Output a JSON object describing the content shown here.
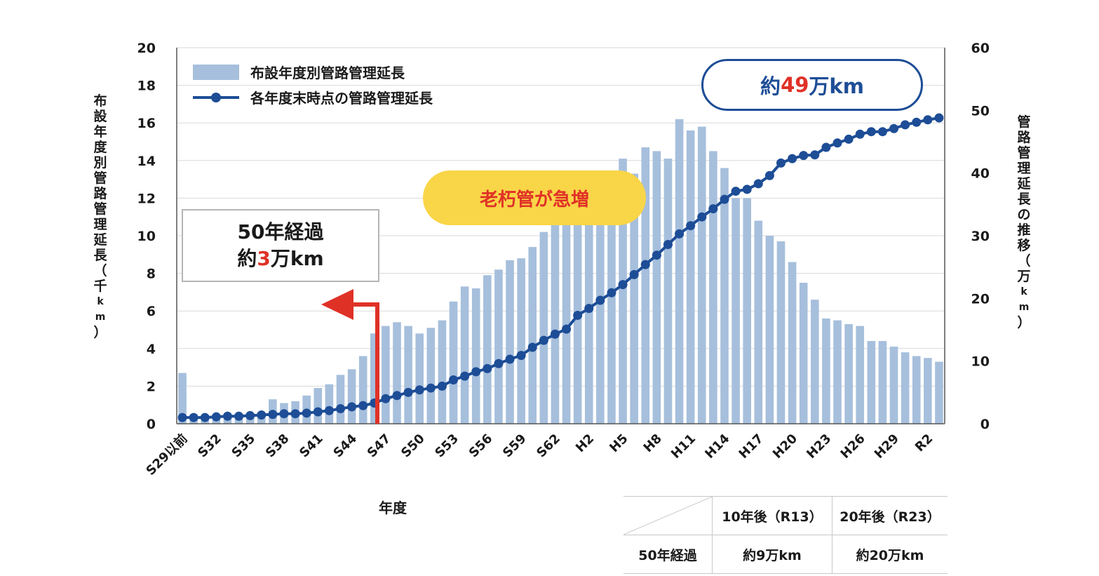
{
  "chart_data": {
    "type": "bar+line",
    "xlabel": "年度",
    "ylabel_left": "布設年度別管路管理延長（千km）",
    "ylabel_right": "管路管理延長の推移（万km）",
    "ylim_left": [
      0,
      20
    ],
    "ylim_right": [
      0,
      60
    ],
    "yticks_left": [
      0,
      2,
      4,
      6,
      8,
      10,
      12,
      14,
      16,
      18,
      20
    ],
    "yticks_right": [
      0,
      10,
      20,
      30,
      40,
      50,
      60
    ],
    "grid": true,
    "legend_placement": "top-left",
    "categories": [
      "S29以前",
      "S30",
      "S31",
      "S32",
      "S33",
      "S34",
      "S35",
      "S36",
      "S37",
      "S38",
      "S39",
      "S40",
      "S41",
      "S42",
      "S43",
      "S44",
      "S45",
      "S46",
      "S47",
      "S48",
      "S49",
      "S50",
      "S51",
      "S52",
      "S53",
      "S54",
      "S55",
      "S56",
      "S57",
      "S58",
      "S59",
      "S60",
      "S61",
      "S62",
      "S63",
      "H1",
      "H2",
      "H3",
      "H4",
      "H5",
      "H6",
      "H7",
      "H8",
      "H9",
      "H10",
      "H11",
      "H12",
      "H13",
      "H14",
      "H15",
      "H16",
      "H17",
      "H18",
      "H19",
      "H20",
      "H21",
      "H22",
      "H23",
      "H24",
      "H25",
      "H26",
      "H27",
      "H28",
      "H29",
      "H30",
      "R1",
      "R2",
      "R3"
    ],
    "x_tick_labels": [
      "S29以前",
      "S32",
      "S35",
      "S38",
      "S41",
      "S44",
      "S47",
      "S50",
      "S53",
      "S56",
      "S59",
      "S62",
      "H2",
      "H5",
      "H8",
      "H11",
      "H14",
      "H17",
      "H20",
      "H23",
      "H26",
      "H29",
      "R2"
    ],
    "series": [
      {
        "name": "布設年度別管路管理延長",
        "axis": "left",
        "type": "bar",
        "color": "#a6bfdc",
        "values": [
          2.7,
          0.5,
          0.4,
          0.5,
          0.5,
          0.5,
          0.5,
          0.6,
          1.3,
          1.1,
          1.2,
          1.5,
          1.9,
          2.1,
          2.6,
          2.9,
          3.6,
          4.8,
          5.2,
          5.4,
          5.2,
          4.8,
          5.1,
          5.5,
          6.5,
          7.3,
          7.2,
          7.9,
          8.2,
          8.7,
          8.8,
          9.4,
          10.2,
          10.7,
          10.8,
          11.3,
          11.5,
          11.5,
          12.2,
          14.1,
          13.3,
          14.7,
          14.5,
          14.1,
          16.2,
          15.6,
          15.8,
          14.5,
          13.6,
          12.0,
          12.0,
          10.8,
          10.0,
          9.7,
          8.6,
          7.5,
          6.6,
          5.6,
          5.5,
          5.3,
          5.2,
          4.4,
          4.4,
          4.1,
          3.8,
          3.6,
          3.5,
          3.3
        ]
      },
      {
        "name": "各年度末時点の管路管理延長",
        "axis": "right",
        "type": "line",
        "color": "#1d4d96",
        "values": [
          1.0,
          1.0,
          1.0,
          1.1,
          1.2,
          1.2,
          1.3,
          1.4,
          1.5,
          1.6,
          1.6,
          1.7,
          1.9,
          2.1,
          2.4,
          2.7,
          2.9,
          3.3,
          4.0,
          4.5,
          5.0,
          5.4,
          5.7,
          6.0,
          7.0,
          7.6,
          8.3,
          8.8,
          9.6,
          10.3,
          10.9,
          12.2,
          13.3,
          14.3,
          15.1,
          17.3,
          18.4,
          19.7,
          20.9,
          22.2,
          23.8,
          25.4,
          26.9,
          28.6,
          30.3,
          31.6,
          33.0,
          34.3,
          35.8,
          37.1,
          37.4,
          38.3,
          39.6,
          41.6,
          42.3,
          42.8,
          42.9,
          44.1,
          44.8,
          45.4,
          46.2,
          46.6,
          46.6,
          47.1,
          47.7,
          48.1,
          48.5,
          48.8
        ]
      }
    ],
    "annotations": {
      "total_prefix": "約",
      "total_value": "49",
      "total_suffix": "万km",
      "surge_label": "老朽管が急増",
      "over50_line1": "50年経過",
      "over50_line2_prefix": "約",
      "over50_line2_value": "3",
      "over50_line2_suffix": "万km"
    },
    "future_table": {
      "headers": [
        "10年後（R13）",
        "20年後（R23）"
      ],
      "row_label": "50年経過",
      "values": [
        "約9万km",
        "約20万km"
      ]
    },
    "colors": {
      "bar": "#a6bfdc",
      "line": "#1d4d96",
      "accent_red": "#e03127",
      "pill_yellow": "#f9d548",
      "grid": "#d9d9d9"
    }
  }
}
